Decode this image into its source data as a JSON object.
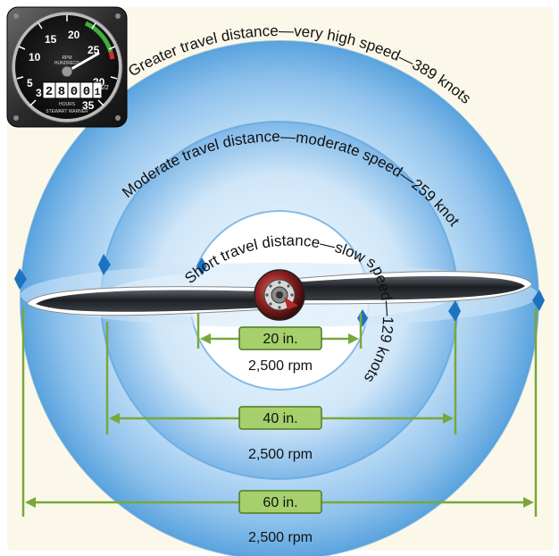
{
  "tachometer": {
    "unit_label": "RPM",
    "sub_label": "HUNDREDS",
    "hours_label": "HOURS",
    "odometer_digits": [
      "2",
      "8",
      "0",
      "0",
      "1"
    ],
    "odometer_tenths": "1/2",
    "scale_numbers": [
      "5",
      "10",
      "15",
      "20",
      "25",
      "30",
      "35"
    ],
    "scale_extra_left": "3",
    "maker_text": "STEWART WARNER"
  },
  "arcs": {
    "outer": "Greater travel distance—very high speed—389 knots",
    "middle": "Moderate travel distance—moderate speed—259 knots",
    "inner": "Short travel distance—slow speed—129 knots"
  },
  "measurements": [
    {
      "size": "20 in.",
      "rpm": "2,500 rpm"
    },
    {
      "size": "40 in.",
      "rpm": "2,500 rpm"
    },
    {
      "size": "60 in.",
      "rpm": "2,500 rpm"
    }
  ],
  "colors": {
    "background": "#fbf8ea",
    "disc_light": "#eef7fd",
    "disc_mid": "#9dcbef",
    "disc_dark": "#4d9bd9",
    "bar_green": "#78a83a",
    "box_fill": "#a6d06c",
    "arrow_blue": "#1e73be",
    "blade": "#2a2e33"
  }
}
